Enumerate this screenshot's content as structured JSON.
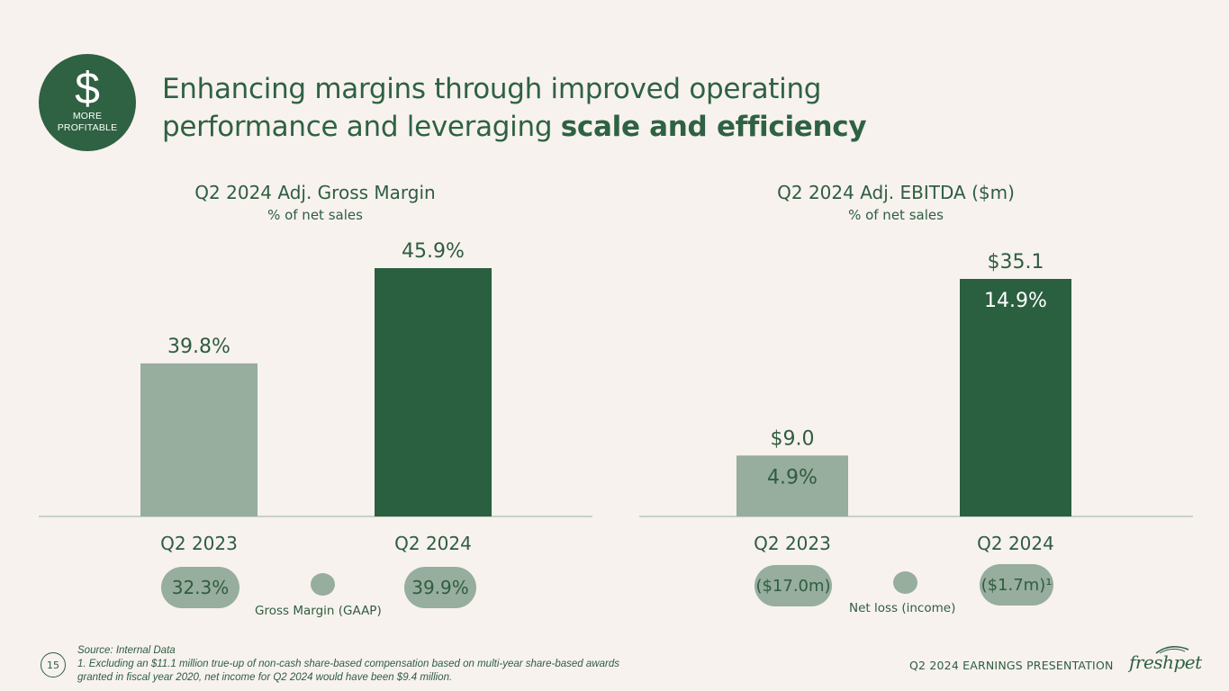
{
  "badge": {
    "symbol": "$",
    "text": "MORE\nPROFITABLE"
  },
  "title": {
    "line1": "Enhancing margins through improved operating",
    "line2_prefix": "performance and leveraging ",
    "line2_bold": "scale and efficiency"
  },
  "colors": {
    "dark_green": "#2a5f40",
    "light_green": "#97ad9d",
    "text_green": "#2f5d41",
    "background": "#f7f2ee"
  },
  "chart_data": [
    {
      "type": "bar",
      "title": "Q2 2024 Adj. Gross Margin",
      "subtitle": "% of net sales",
      "categories": [
        "Q2 2023",
        "Q2 2024"
      ],
      "values": [
        39.8,
        45.9
      ],
      "value_labels": [
        "39.8%",
        "45.9%"
      ],
      "inner_labels": [
        "",
        ""
      ],
      "ylim": [
        30,
        47.5
      ],
      "bar_colors": [
        "#97ad9d",
        "#2a5f40"
      ],
      "secondary": {
        "legend": "Gross Margin (GAAP)",
        "labels": [
          "32.3%",
          "39.9%"
        ]
      }
    },
    {
      "type": "bar",
      "title": "Q2 2024 Adj. EBITDA ($m)",
      "subtitle": "% of net sales",
      "categories": [
        "Q2 2023",
        "Q2 2024"
      ],
      "values": [
        9.0,
        35.1
      ],
      "value_labels": [
        "$9.0",
        "$35.1"
      ],
      "inner_labels": [
        "4.9%",
        "14.9%"
      ],
      "ylim": [
        0,
        39
      ],
      "bar_colors": [
        "#97ad9d",
        "#2a5f40"
      ],
      "secondary": {
        "legend": "Net loss (income)",
        "labels": [
          "($17.0m)",
          "($1.7m)¹"
        ]
      }
    }
  ],
  "footer": {
    "page_number": "15",
    "source": "Source: Internal Data",
    "note_line1": "1. Excluding an $11.1 million true-up of non-cash share-based compensation based on multi-year share-based awards",
    "note_line2": "granted in fiscal year 2020, net income for Q2 2024 would have been $9.4 million.",
    "presentation_title": "Q2 2024 EARNINGS PRESENTATION",
    "brand": "freshpet"
  }
}
